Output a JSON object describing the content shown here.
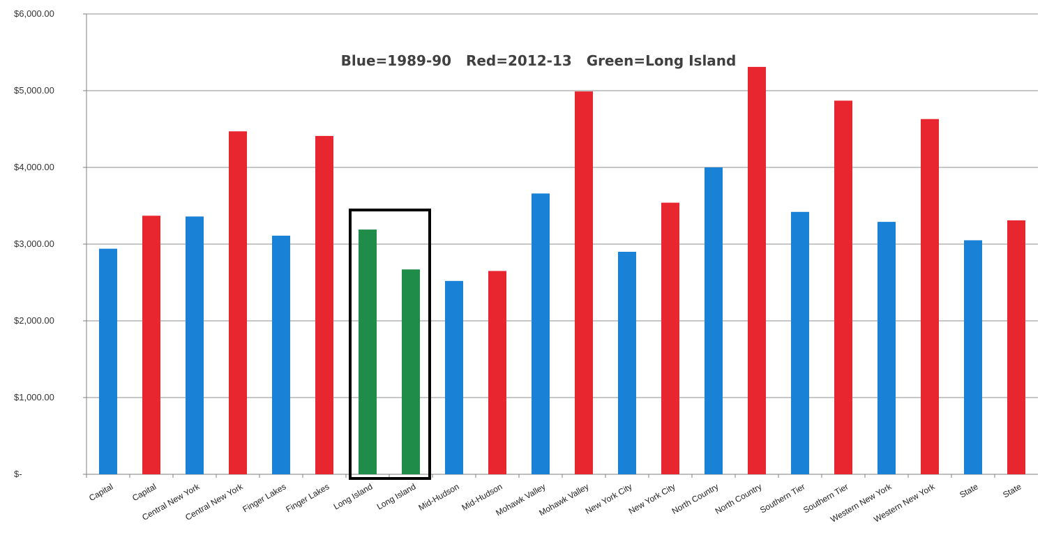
{
  "chart_data": {
    "type": "bar",
    "title": "Blue=1989-90   Red=2012-13   Green=Long Island",
    "xlabel": "",
    "ylabel": "",
    "ylim": [
      0,
      6000
    ],
    "y_ticks": [
      "$-",
      "$1,000.00",
      "$2,000.00",
      "$3,000.00",
      "$4,000.00",
      "$5,000.00",
      "$6,000.00"
    ],
    "grid": true,
    "colors": {
      "blue": "#1a82d6",
      "red": "#e8262f",
      "green": "#1f8c4a",
      "highlight_box": "#000000"
    },
    "categories": [
      "Capital",
      "Capital",
      "Central New York",
      "Central New York",
      "Finger Lakes",
      "Finger Lakes",
      "Long Island",
      "Long Island",
      "Mid-Hudson",
      "Mid-Hudson",
      "Mohawk Valley",
      "Mohawk Valley",
      "New York City",
      "New York City",
      "North Country",
      "North Country",
      "Southern Tier",
      "Southern Tier",
      "Western New York",
      "Western New York",
      "State",
      "State"
    ],
    "values": [
      2940,
      3370,
      3360,
      4470,
      3110,
      4410,
      3190,
      2670,
      2520,
      2650,
      3660,
      4990,
      2900,
      3540,
      4000,
      5310,
      3420,
      4870,
      3290,
      4630,
      3050,
      3310
    ],
    "bar_colors": [
      "blue",
      "red",
      "blue",
      "red",
      "blue",
      "red",
      "green",
      "green",
      "blue",
      "red",
      "blue",
      "red",
      "blue",
      "red",
      "blue",
      "red",
      "blue",
      "red",
      "blue",
      "red",
      "blue",
      "red"
    ],
    "highlighted_categories": [
      6,
      7
    ]
  }
}
